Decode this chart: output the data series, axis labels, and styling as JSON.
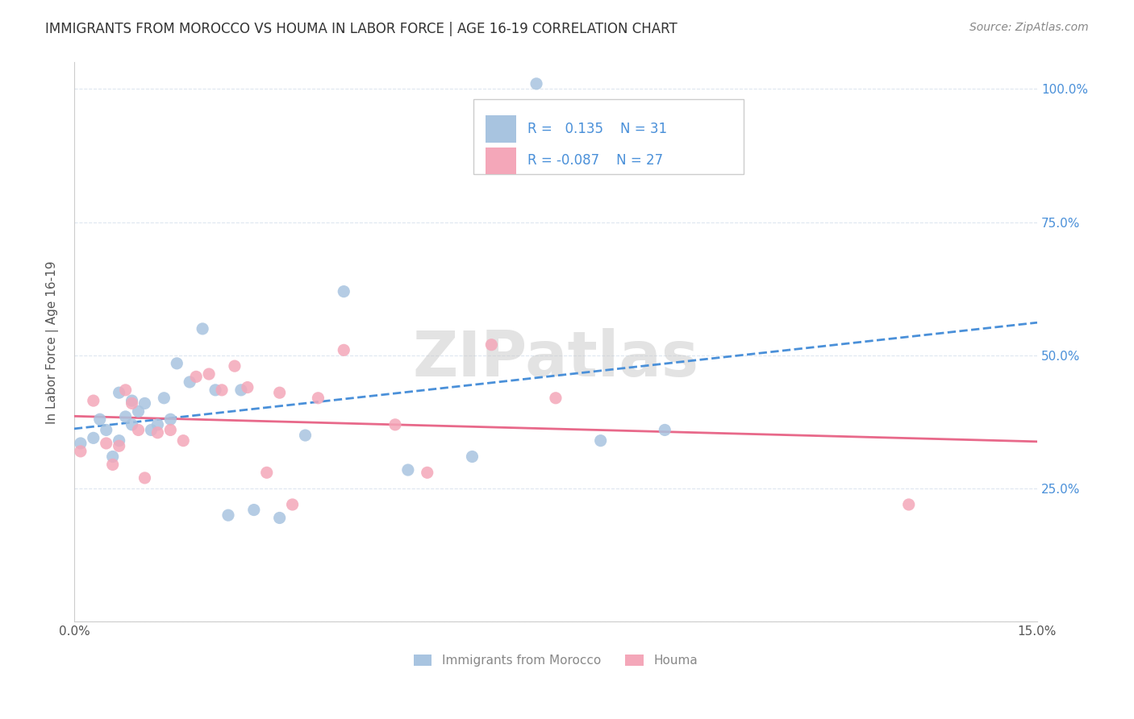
{
  "title": "IMMIGRANTS FROM MOROCCO VS HOUMA IN LABOR FORCE | AGE 16-19 CORRELATION CHART",
  "source": "Source: ZipAtlas.com",
  "ylabel": "In Labor Force | Age 16-19",
  "xlim": [
    0.0,
    0.15
  ],
  "ylim": [
    0.0,
    1.05
  ],
  "xticks": [
    0.0,
    0.03,
    0.06,
    0.09,
    0.12,
    0.15
  ],
  "xticklabels": [
    "0.0%",
    "",
    "",
    "",
    "",
    "15.0%"
  ],
  "yticks_left": [
    0.0,
    0.25,
    0.5,
    0.75,
    1.0
  ],
  "yticks_right": [
    0.0,
    0.25,
    0.5,
    0.75,
    1.0
  ],
  "yticklabels_right": [
    "",
    "25.0%",
    "50.0%",
    "75.0%",
    "100.0%"
  ],
  "morocco_color": "#a8c4e0",
  "houma_color": "#f4a7b9",
  "morocco_line_color": "#4a90d9",
  "houma_line_color": "#e8698a",
  "legend_r_morocco": "0.135",
  "legend_n_morocco": "31",
  "legend_r_houma": "-0.087",
  "legend_n_houma": "27",
  "watermark": "ZIPatlas",
  "morocco_x": [
    0.001,
    0.003,
    0.004,
    0.005,
    0.006,
    0.007,
    0.007,
    0.008,
    0.009,
    0.009,
    0.01,
    0.011,
    0.012,
    0.013,
    0.014,
    0.015,
    0.016,
    0.018,
    0.02,
    0.022,
    0.024,
    0.026,
    0.028,
    0.032,
    0.036,
    0.042,
    0.052,
    0.062,
    0.072,
    0.082,
    0.092
  ],
  "morocco_y": [
    0.335,
    0.345,
    0.38,
    0.36,
    0.31,
    0.34,
    0.43,
    0.385,
    0.37,
    0.415,
    0.395,
    0.41,
    0.36,
    0.37,
    0.42,
    0.38,
    0.485,
    0.45,
    0.55,
    0.435,
    0.2,
    0.435,
    0.21,
    0.195,
    0.35,
    0.62,
    0.285,
    0.31,
    1.01,
    0.34,
    0.36
  ],
  "houma_x": [
    0.001,
    0.003,
    0.005,
    0.006,
    0.007,
    0.008,
    0.009,
    0.01,
    0.011,
    0.013,
    0.015,
    0.017,
    0.019,
    0.021,
    0.023,
    0.025,
    0.027,
    0.03,
    0.032,
    0.034,
    0.038,
    0.042,
    0.05,
    0.055,
    0.065,
    0.075,
    0.13
  ],
  "houma_y": [
    0.32,
    0.415,
    0.335,
    0.295,
    0.33,
    0.435,
    0.41,
    0.36,
    0.27,
    0.355,
    0.36,
    0.34,
    0.46,
    0.465,
    0.435,
    0.48,
    0.44,
    0.28,
    0.43,
    0.22,
    0.42,
    0.51,
    0.37,
    0.28,
    0.52,
    0.42,
    0.22
  ],
  "background_color": "#ffffff",
  "grid_color": "#dde6ef",
  "title_fontsize": 12,
  "source_fontsize": 10
}
